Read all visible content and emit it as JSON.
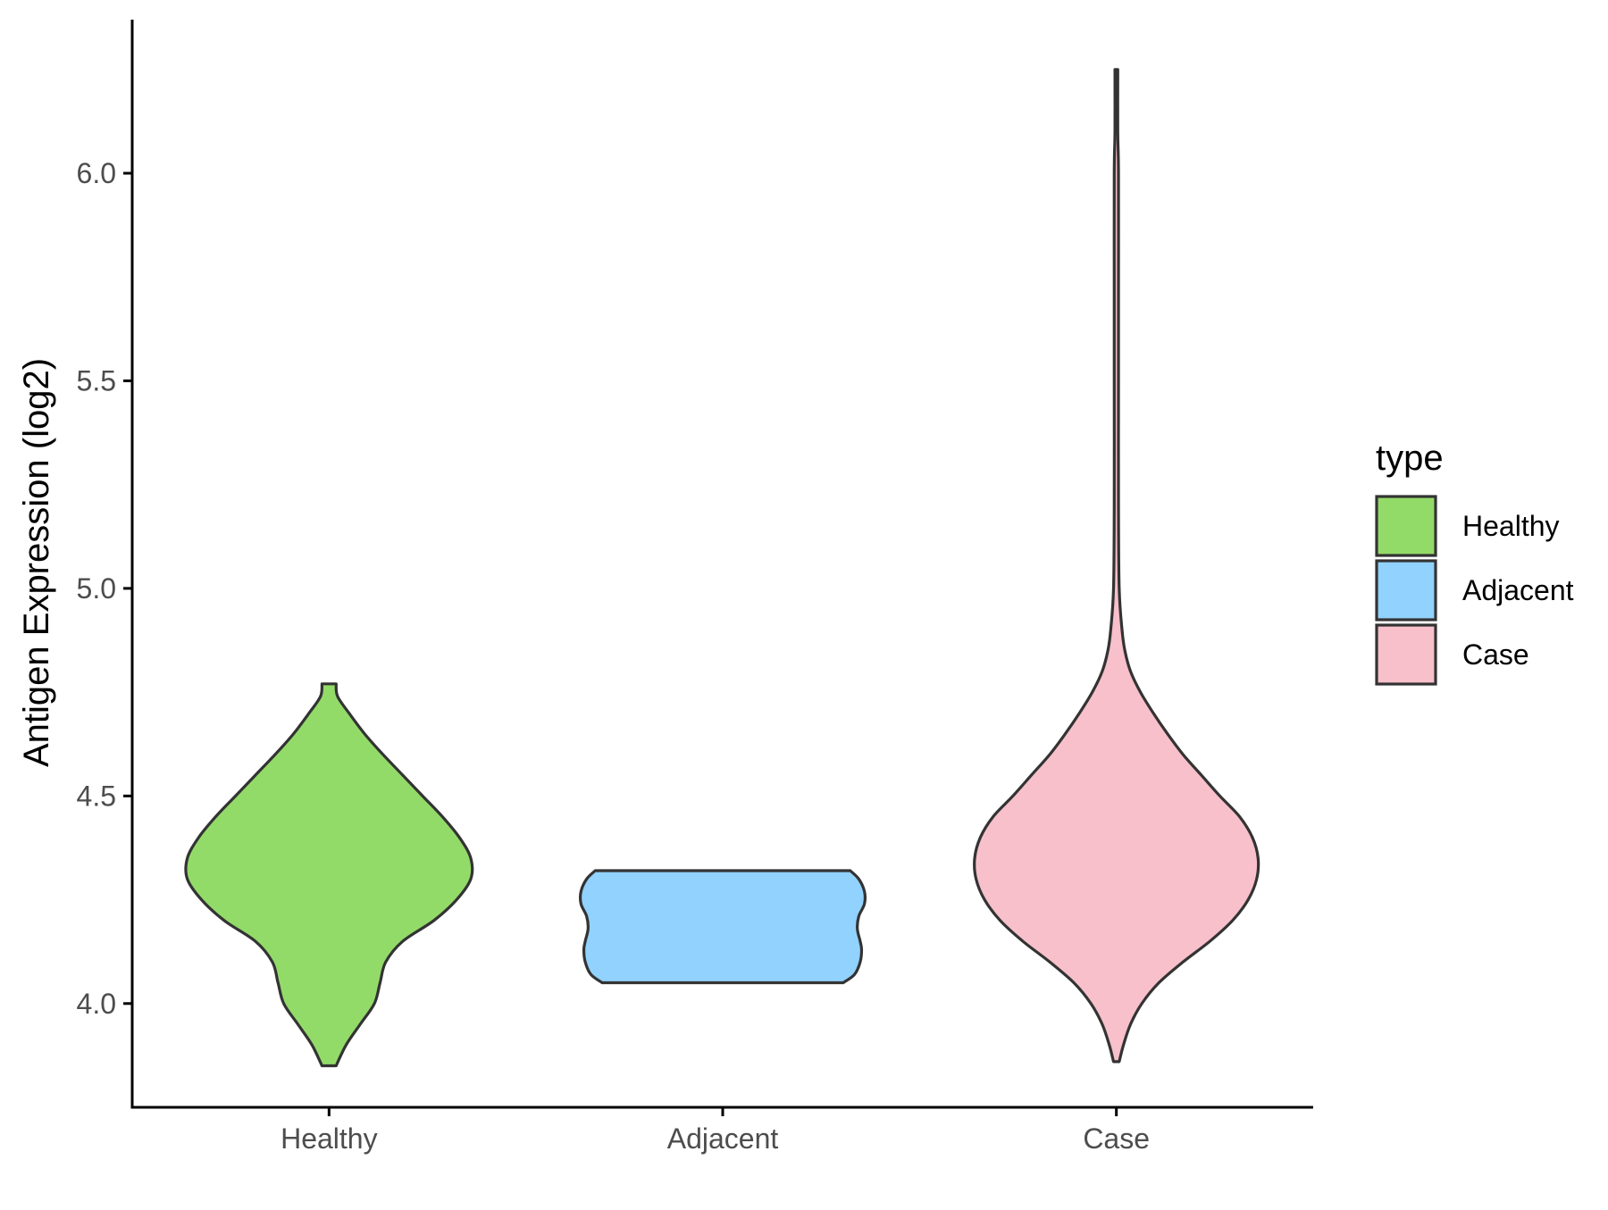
{
  "chart_data": {
    "type": "violin",
    "title": "",
    "xlabel": "",
    "ylabel": "Antigen Expression (log2)",
    "ylim": [
      3.75,
      6.37
    ],
    "yticks": [
      "4.0",
      "4.5",
      "5.0",
      "5.5",
      "6.0"
    ],
    "categories": [
      "Healthy",
      "Adjacent",
      "Case"
    ],
    "grid": false,
    "legend": {
      "title": "type",
      "placement": "right",
      "entries": [
        "Healthy",
        "Adjacent",
        "Case"
      ]
    },
    "colors": {
      "Healthy": "#93DB69",
      "Adjacent": "#92D2FE",
      "Case": "#F7C0CB"
    },
    "series": [
      {
        "name": "Healthy",
        "min": 3.85,
        "max": 4.77,
        "density": [
          [
            3.85,
            0.05
          ],
          [
            3.9,
            0.12
          ],
          [
            3.95,
            0.22
          ],
          [
            4.0,
            0.32
          ],
          [
            4.05,
            0.36
          ],
          [
            4.1,
            0.4
          ],
          [
            4.15,
            0.52
          ],
          [
            4.2,
            0.74
          ],
          [
            4.25,
            0.9
          ],
          [
            4.3,
            1.0
          ],
          [
            4.35,
            1.0
          ],
          [
            4.4,
            0.92
          ],
          [
            4.45,
            0.8
          ],
          [
            4.5,
            0.66
          ],
          [
            4.55,
            0.52
          ],
          [
            4.6,
            0.38
          ],
          [
            4.65,
            0.25
          ],
          [
            4.7,
            0.14
          ],
          [
            4.74,
            0.06
          ],
          [
            4.77,
            0.05
          ]
        ]
      },
      {
        "name": "Adjacent",
        "min": 4.05,
        "max": 4.32,
        "density": [
          [
            4.05,
            0.85
          ],
          [
            4.07,
            0.93
          ],
          [
            4.1,
            0.97
          ],
          [
            4.13,
            0.98
          ],
          [
            4.15,
            0.97
          ],
          [
            4.18,
            0.95
          ],
          [
            4.21,
            0.96
          ],
          [
            4.24,
            1.0
          ],
          [
            4.27,
            1.0
          ],
          [
            4.3,
            0.96
          ],
          [
            4.32,
            0.9
          ]
        ]
      },
      {
        "name": "Case",
        "min": 3.86,
        "max": 6.25,
        "density": [
          [
            3.86,
            0.02
          ],
          [
            3.9,
            0.05
          ],
          [
            3.95,
            0.1
          ],
          [
            4.0,
            0.18
          ],
          [
            4.05,
            0.3
          ],
          [
            4.1,
            0.47
          ],
          [
            4.15,
            0.66
          ],
          [
            4.2,
            0.82
          ],
          [
            4.25,
            0.93
          ],
          [
            4.3,
            0.99
          ],
          [
            4.35,
            1.0
          ],
          [
            4.4,
            0.96
          ],
          [
            4.45,
            0.87
          ],
          [
            4.5,
            0.73
          ],
          [
            4.55,
            0.6
          ],
          [
            4.6,
            0.47
          ],
          [
            4.65,
            0.36
          ],
          [
            4.7,
            0.26
          ],
          [
            4.75,
            0.17
          ],
          [
            4.8,
            0.1
          ],
          [
            4.85,
            0.06
          ],
          [
            4.9,
            0.04
          ],
          [
            5.0,
            0.02
          ],
          [
            5.2,
            0.015
          ],
          [
            5.5,
            0.015
          ],
          [
            5.7,
            0.015
          ],
          [
            6.0,
            0.015
          ],
          [
            6.1,
            0.01
          ],
          [
            6.25,
            0.01
          ]
        ]
      }
    ]
  }
}
